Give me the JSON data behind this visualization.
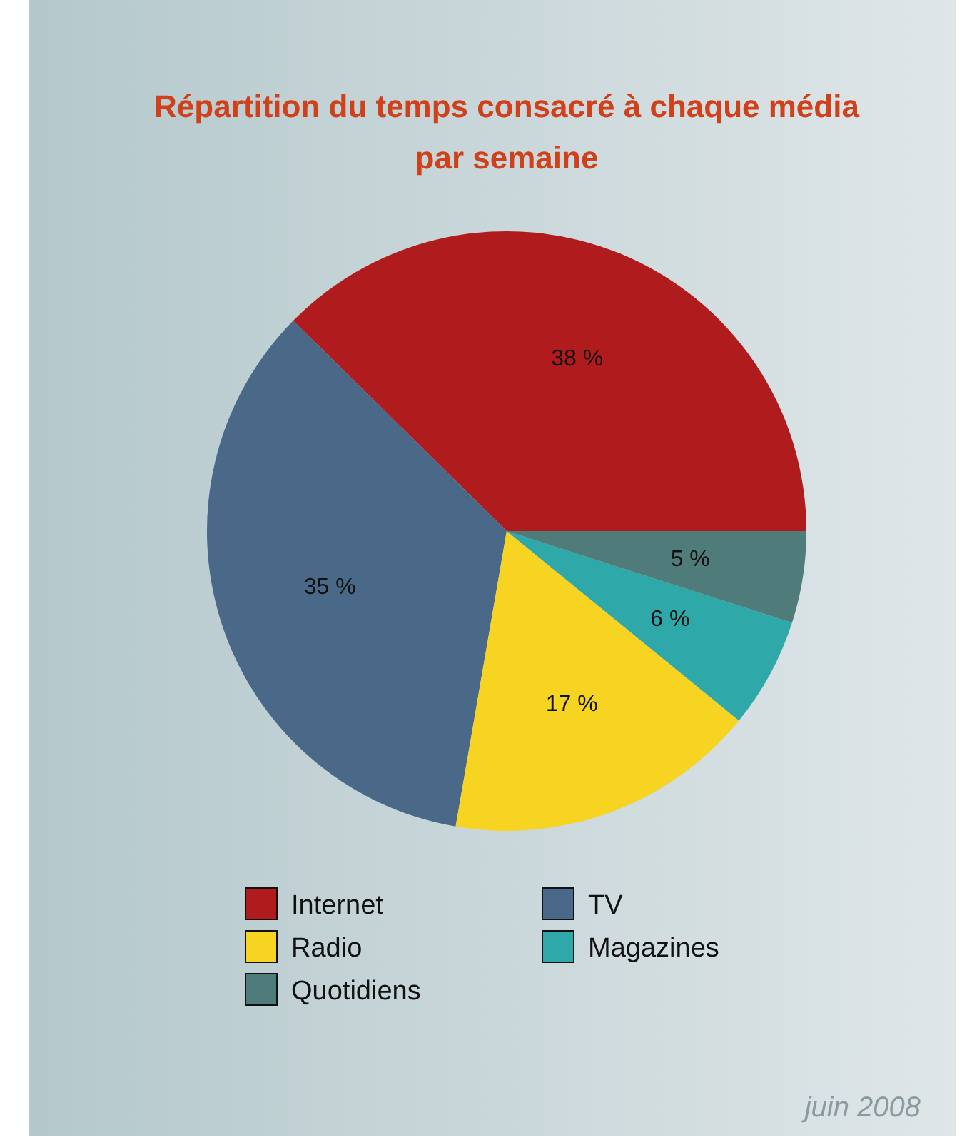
{
  "chart_data": {
    "type": "pie",
    "title": "Répartition du temps consacré à chaque média par semaine",
    "categories": [
      "Internet",
      "TV",
      "Radio",
      "Magazines",
      "Quotidiens"
    ],
    "values": [
      38,
      35,
      17,
      6,
      5
    ],
    "colors": [
      "#b01c1e",
      "#4a6888",
      "#f7d422",
      "#2ea8a8",
      "#4f7c7a"
    ],
    "value_labels": [
      "38 %",
      "35 %",
      "17 %",
      "6 %",
      "5 %"
    ],
    "legend": "bottom",
    "annotations": [
      "juin 2008"
    ]
  }
}
